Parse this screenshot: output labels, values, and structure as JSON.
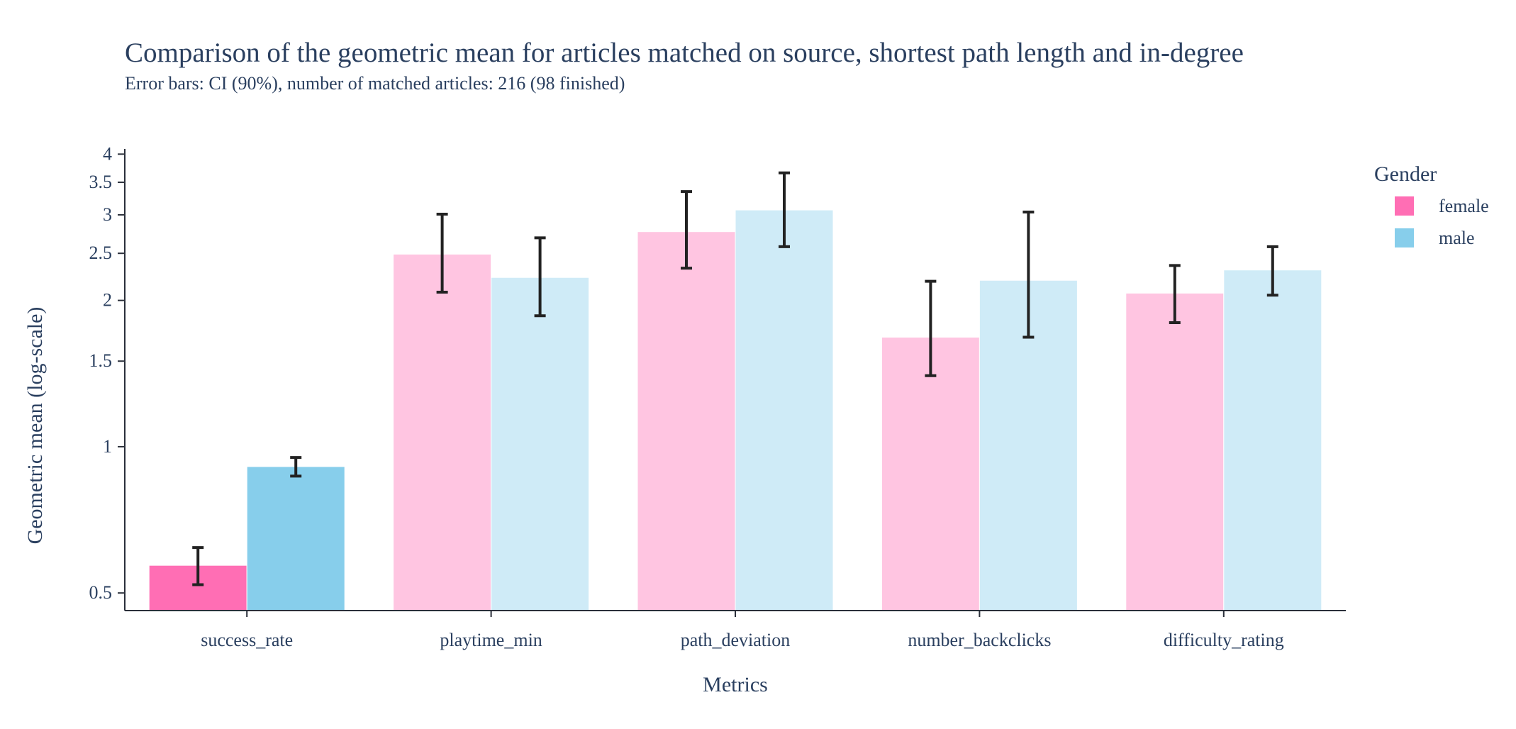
{
  "chart_data": {
    "type": "bar",
    "title": "Comparison of the geometric mean for articles matched on source, shortest path length and in-degree",
    "subtitle": "Error bars: CI (90%), number of matched articles: 216 (98 finished)",
    "xlabel": "Metrics",
    "ylabel": "Geometric mean (log-scale)",
    "y_scale": "log",
    "ylim": [
      0.46,
      4.1
    ],
    "yticks": [
      0.5,
      1,
      1.5,
      2,
      2.5,
      3,
      3.5,
      4
    ],
    "ytick_labels": [
      "0.5",
      "1",
      "1.5",
      "2",
      "2.5",
      "3",
      "3.5",
      "4"
    ],
    "categories": [
      "success_rate",
      "playtime_min",
      "path_deviation",
      "number_backclicks",
      "difficulty_rating"
    ],
    "legend_title": "Gender",
    "legend_position": "top-right",
    "grid": false,
    "series": [
      {
        "name": "female",
        "color": "#ff6eb4",
        "values": [
          0.57,
          2.49,
          2.77,
          1.68,
          2.07
        ],
        "ci_low": [
          0.52,
          2.08,
          2.33,
          1.4,
          1.8
        ],
        "ci_high": [
          0.62,
          3.01,
          3.35,
          2.19,
          2.36
        ],
        "faded": [
          false,
          true,
          true,
          true,
          true
        ]
      },
      {
        "name": "male",
        "color": "#87ceeb",
        "values": [
          0.91,
          2.23,
          3.07,
          2.2,
          2.31
        ],
        "ci_low": [
          0.87,
          1.86,
          2.58,
          1.68,
          2.05
        ],
        "ci_high": [
          0.95,
          2.69,
          3.66,
          3.04,
          2.58
        ],
        "faded": [
          false,
          true,
          true,
          true,
          true
        ]
      }
    ]
  }
}
